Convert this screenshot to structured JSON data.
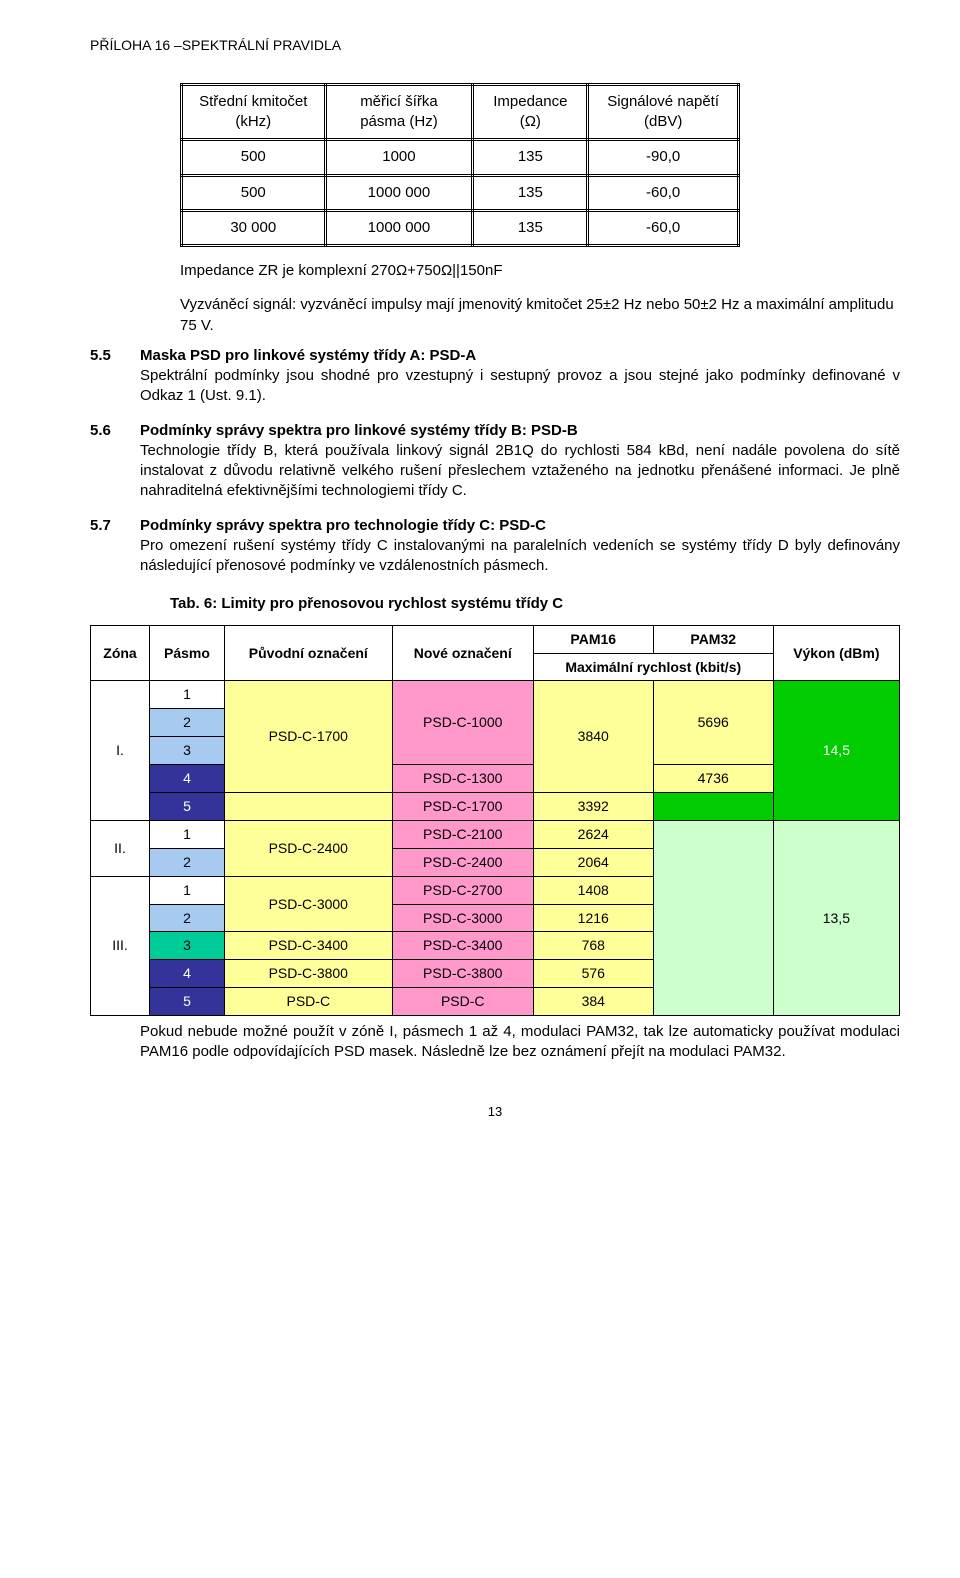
{
  "header": "PŘÍLOHA 16 –SPEKTRÁLNÍ PRAVIDLA",
  "table1": {
    "cols": [
      "Střední kmitočet (kHz)",
      "měřicí šířka pásma (Hz)",
      "Impedance (Ω)",
      "Signálové napětí (dBV)"
    ],
    "rows": [
      [
        "500",
        "1000",
        "135",
        "-90,0"
      ],
      [
        "500",
        "1000 000",
        "135",
        "-60,0"
      ],
      [
        "30 000",
        "1000 000",
        "135",
        "-60,0"
      ]
    ]
  },
  "impedance_note": "Impedance ZR je komplexní 270Ω+750Ω||150nF",
  "signal_note": "Vyzváněcí signál: vyzváněcí impulsy mají jmenovitý kmitočet 25±2 Hz nebo 50±2 Hz a maximální amplitudu 75 V.",
  "sections": [
    {
      "num": "5.5",
      "title": "Maska PSD pro linkové systémy třídy A: PSD-A",
      "body": "Spektrální podmínky jsou shodné pro vzestupný i sestupný provoz a jsou stejné jako podmínky definované v Odkaz 1 (Ust. 9.1)."
    },
    {
      "num": "5.6",
      "title": "Podmínky správy spektra pro linkové systémy třídy B: PSD-B",
      "body": "Technologie třídy B, která používala linkový signál 2B1Q do rychlosti 584 kBd, není nadále povolena do sítě instalovat z důvodu relativně velkého rušení přeslechem vztaženého na jednotku přenášené informaci. Je plně nahraditelná efektivnějšími technologiemi třídy C."
    },
    {
      "num": "5.7",
      "title": "Podmínky správy spektra pro technologie třídy C: PSD-C",
      "body": "Pro omezení rušení systémy třídy C instalovanými na paralelních vedeních se systémy třídy D byly definovány následující přenosové podmínky ve vzdálenostních pásmech."
    }
  ],
  "table6_caption": "Tab. 6: Limity pro přenosovou rychlost systému třídy C",
  "table6": {
    "head": {
      "zona": "Zóna",
      "pasmo": "Pásmo",
      "puvodni": "Původní označení",
      "nove": "Nové označení",
      "pam16": "PAM16",
      "pam32": "PAM32",
      "maxr": "Maximální rychlost (kbit/s)",
      "vykon": "Výkon (dBm)"
    },
    "colors": {
      "white": "#ffffff",
      "lblue": "#a6caf0",
      "dblue": "#333399",
      "cyan": "#00cc99",
      "yel": "#ffff99",
      "pink": "#ff99cc",
      "green": "#00cc00",
      "ltgreen": "#ccffcc"
    },
    "zones": {
      "I": "I.",
      "II": "II.",
      "III": "III."
    },
    "body": [
      {
        "zone": "I",
        "pasmo": "1",
        "pcolor": "white",
        "puv": "",
        "nove": "",
        "pam16": "",
        "pam32": "",
        "vyk": ""
      },
      {
        "zone": "I",
        "pasmo": "2",
        "pcolor": "lblue",
        "puv": "",
        "nove": "PSD-C-1000",
        "pam16": "3840",
        "pam32": "5696",
        "vyk": ""
      },
      {
        "zone": "I",
        "pasmo": "3",
        "pcolor": "lblue",
        "puv": "",
        "nove": "",
        "pam16": "",
        "pam32": "",
        "vyk": ""
      },
      {
        "zone": "I",
        "pasmo": "4",
        "pcolor": "dblue",
        "puv": "PSD-C-1700",
        "nove": "PSD-C-1300",
        "pam16": "",
        "pam32": "4736",
        "vyk": "14,5"
      },
      {
        "zone": "I",
        "pasmo": "5",
        "pcolor": "dblue",
        "puv": "",
        "nove": "PSD-C-1700",
        "pam16": "3392",
        "pam32": "",
        "vyk": ""
      },
      {
        "zone": "II",
        "pasmo": "1",
        "pcolor": "white",
        "puv": "",
        "nove": "PSD-C-2100",
        "pam16": "2624",
        "pam32": "",
        "vyk": ""
      },
      {
        "zone": "II",
        "pasmo": "2",
        "pcolor": "lblue",
        "puv": "PSD-C-2400",
        "nove": "PSD-C-2400",
        "pam16": "2064",
        "pam32": "",
        "vyk": ""
      },
      {
        "zone": "III",
        "pasmo": "1",
        "pcolor": "white",
        "puv": "",
        "nove": "PSD-C-2700",
        "pam16": "1408",
        "pam32": "",
        "vyk": ""
      },
      {
        "zone": "III",
        "pasmo": "2",
        "pcolor": "lblue",
        "puv": "PSD-C-3000",
        "nove": "PSD-C-3000",
        "pam16": "1216",
        "pam32": "",
        "vyk": ""
      },
      {
        "zone": "III",
        "pasmo": "3",
        "pcolor": "cyan",
        "puv": "PSD-C-3400",
        "nove": "PSD-C-3400",
        "pam16": "768",
        "pam32": "",
        "vyk": "13,5"
      },
      {
        "zone": "III",
        "pasmo": "4",
        "pcolor": "dblue",
        "puv": "PSD-C-3800",
        "nove": "PSD-C-3800",
        "pam16": "576",
        "pam32": "",
        "vyk": ""
      },
      {
        "zone": "III",
        "pasmo": "5",
        "pcolor": "dblue",
        "puv": "PSD-C",
        "nove": "PSD-C",
        "pam16": "384",
        "pam32": "",
        "vyk": ""
      }
    ]
  },
  "footnote": "Pokud nebude možné použít v zóně I, pásmech 1 až 4, modulaci PAM32, tak lze automaticky používat modulaci PAM16 podle odpovídajících PSD masek. Následně lze bez oznámení přejít na modulaci PAM32.",
  "page_number": "13"
}
